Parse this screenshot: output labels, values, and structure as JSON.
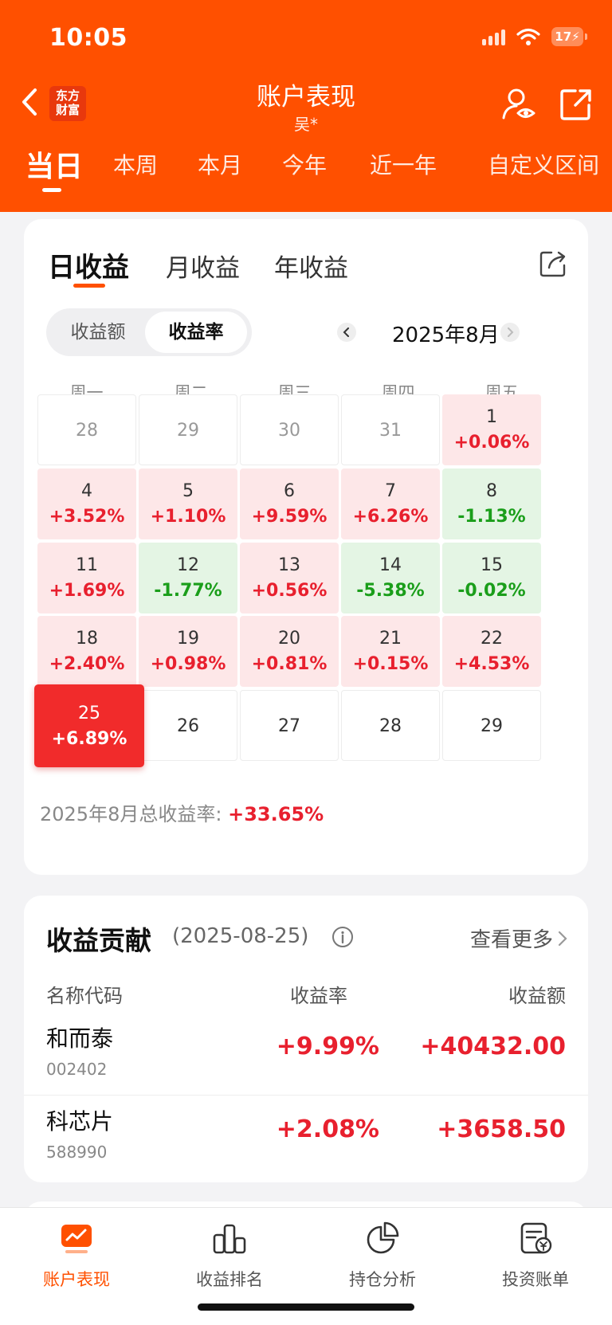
{
  "status_bar": {
    "time": "10:05",
    "battery": "17"
  },
  "header": {
    "logo_text": "东方财富",
    "title": "账户表现",
    "subtitle": "吴*",
    "period_tabs": [
      "当日",
      "本周",
      "本月",
      "今年",
      "近一年",
      "自定义区间"
    ],
    "active_period": "当日"
  },
  "earnings_card": {
    "tabs": [
      "日收益",
      "月收益",
      "年收益"
    ],
    "active_tab": "日收益",
    "segment": [
      "收益额",
      "收益率"
    ],
    "active_segment": "收益率",
    "month": "2025年8月",
    "weekdays": [
      "周一",
      "周二",
      "周三",
      "周四",
      "周五"
    ],
    "days": [
      {
        "day": "28",
        "pct": "",
        "state": "other"
      },
      {
        "day": "29",
        "pct": "",
        "state": "other"
      },
      {
        "day": "30",
        "pct": "",
        "state": "other"
      },
      {
        "day": "31",
        "pct": "",
        "state": "other"
      },
      {
        "day": "1",
        "pct": "+0.06%",
        "state": "up"
      },
      {
        "day": "4",
        "pct": "+3.52%",
        "state": "up"
      },
      {
        "day": "5",
        "pct": "+1.10%",
        "state": "up"
      },
      {
        "day": "6",
        "pct": "+9.59%",
        "state": "up"
      },
      {
        "day": "7",
        "pct": "+6.26%",
        "state": "up"
      },
      {
        "day": "8",
        "pct": "-1.13%",
        "state": "down"
      },
      {
        "day": "11",
        "pct": "+1.69%",
        "state": "up"
      },
      {
        "day": "12",
        "pct": "-1.77%",
        "state": "down"
      },
      {
        "day": "13",
        "pct": "+0.56%",
        "state": "up"
      },
      {
        "day": "14",
        "pct": "-5.38%",
        "state": "down"
      },
      {
        "day": "15",
        "pct": "-0.02%",
        "state": "down"
      },
      {
        "day": "18",
        "pct": "+2.40%",
        "state": "up"
      },
      {
        "day": "19",
        "pct": "+0.98%",
        "state": "up"
      },
      {
        "day": "20",
        "pct": "+0.81%",
        "state": "up"
      },
      {
        "day": "21",
        "pct": "+0.15%",
        "state": "up"
      },
      {
        "day": "22",
        "pct": "+4.53%",
        "state": "up"
      },
      {
        "day": "25",
        "pct": "+6.89%",
        "state": "today"
      },
      {
        "day": "26",
        "pct": "",
        "state": "future"
      },
      {
        "day": "27",
        "pct": "",
        "state": "future"
      },
      {
        "day": "28",
        "pct": "",
        "state": "future"
      },
      {
        "day": "29",
        "pct": "",
        "state": "future"
      }
    ],
    "total_label": "2025年8月总收益率:",
    "total_value": "+33.65%"
  },
  "contribution": {
    "title": "收益贡献",
    "date": "(2025-08-25)",
    "more": "查看更多",
    "headers": {
      "name": "名称代码",
      "rate": "收益率",
      "amount": "收益额"
    },
    "rows": [
      {
        "name": "和而泰",
        "code": "002402",
        "rate": "+9.99%",
        "amount": "+40432.00"
      },
      {
        "name": "科芯片",
        "code": "588990",
        "rate": "+2.08%",
        "amount": "+3658.50"
      }
    ]
  },
  "bottom_nav": [
    {
      "label": "账户表现",
      "icon": "chart-screen-icon",
      "active": true
    },
    {
      "label": "收益排名",
      "icon": "bar-ranking-icon",
      "active": false
    },
    {
      "label": "持仓分析",
      "icon": "pie-chart-icon",
      "active": false
    },
    {
      "label": "投资账单",
      "icon": "bill-icon",
      "active": false
    }
  ],
  "colors": {
    "brand": "#ff5000",
    "up": "#e8202e",
    "down": "#1a9e1a"
  }
}
